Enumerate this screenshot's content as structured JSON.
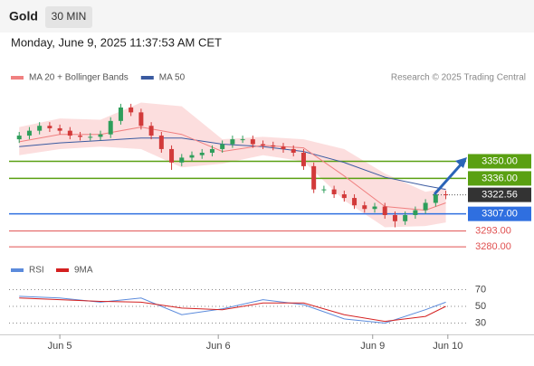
{
  "header": {
    "symbol": "Gold",
    "interval": "30 MIN",
    "timestamp": "Monday, June 9, 2025 11:37:53 AM CET"
  },
  "chart_data": [
    {
      "type": "candlestick",
      "legend": [
        {
          "name": "MA 20 + Bollinger Bands",
          "color": "#f08080"
        },
        {
          "name": "MA 50",
          "color": "#3a5aa0"
        }
      ],
      "credit": "Research © 2025 Trading Central",
      "ylim": [
        3272,
        3408
      ],
      "xlim": [
        -1,
        44
      ],
      "xticks": [
        {
          "value": 4,
          "label": "Jun 5"
        },
        {
          "value": 19.6,
          "label": "Jun 6"
        },
        {
          "value": 34.8,
          "label": "Jun 9"
        },
        {
          "value": 42.2,
          "label": "Jun 10"
        }
      ],
      "up_color": "#2e9e5b",
      "down_color": "#d23a3a",
      "open": [
        3368,
        3371,
        3375,
        3379,
        3377,
        3375,
        3371,
        3370,
        3370,
        3372,
        3383,
        3394,
        3390,
        3379,
        3371,
        3360,
        3349,
        3353,
        3355,
        3357,
        3360,
        3364,
        3368,
        3368,
        3364,
        3363,
        3362,
        3360,
        3357,
        3346,
        3327,
        3327,
        3323,
        3320,
        3314,
        3311,
        3313,
        3306,
        3301,
        3306,
        3310,
        3316,
        3323
      ],
      "high": [
        3374,
        3378,
        3382,
        3382,
        3380,
        3378,
        3374,
        3373,
        3375,
        3386,
        3397,
        3397,
        3393,
        3382,
        3374,
        3363,
        3356,
        3358,
        3360,
        3363,
        3367,
        3371,
        3371,
        3371,
        3367,
        3366,
        3365,
        3363,
        3360,
        3349,
        3330,
        3330,
        3326,
        3323,
        3317,
        3316,
        3316,
        3309,
        3309,
        3313,
        3319,
        3326,
        3326
      ],
      "low": [
        3365,
        3368,
        3372,
        3374,
        3372,
        3368,
        3367,
        3367,
        3367,
        3369,
        3380,
        3387,
        3376,
        3368,
        3357,
        3343,
        3346,
        3350,
        3352,
        3354,
        3357,
        3361,
        3365,
        3361,
        3360,
        3359,
        3357,
        3354,
        3343,
        3324,
        3324,
        3320,
        3317,
        3311,
        3308,
        3308,
        3303,
        3296,
        3298,
        3303,
        3307,
        3313,
        3319
      ],
      "close": [
        3371,
        3375,
        3379,
        3377,
        3375,
        3371,
        3370,
        3370,
        3372,
        3383,
        3394,
        3390,
        3379,
        3371,
        3360,
        3349,
        3353,
        3355,
        3357,
        3360,
        3364,
        3368,
        3368,
        3364,
        3363,
        3362,
        3360,
        3357,
        3346,
        3327,
        3327,
        3323,
        3320,
        3314,
        3311,
        3313,
        3306,
        3301,
        3306,
        3310,
        3316,
        3323,
        3322.56
      ],
      "indicator_x": [
        0,
        4,
        8,
        12,
        16,
        20,
        24,
        28,
        32,
        36,
        40,
        42
      ],
      "band_upper": [
        3378,
        3385,
        3384,
        3398,
        3395,
        3368,
        3370,
        3368,
        3360,
        3340,
        3325,
        3328
      ],
      "band_lower": [
        3355,
        3360,
        3362,
        3360,
        3345,
        3348,
        3355,
        3350,
        3318,
        3296,
        3297,
        3300
      ],
      "ma20": [
        3366,
        3372,
        3372,
        3378,
        3372,
        3358,
        3363,
        3361,
        3338,
        3313,
        3310,
        3316
      ],
      "ma50": [
        3362,
        3365,
        3367,
        3369,
        3369,
        3364,
        3362,
        3358,
        3349,
        3337,
        3330,
        3327
      ],
      "levels": [
        {
          "value": 3350,
          "label": "3350.00",
          "color": "#5aa012",
          "style": "box"
        },
        {
          "value": 3336,
          "label": "3336.00",
          "color": "#5aa012",
          "style": "box"
        },
        {
          "value": 3322.56,
          "label": "3322.56",
          "color": "#333333",
          "style": "current"
        },
        {
          "value": 3307,
          "label": "3307.00",
          "color": "#2f6fe0",
          "style": "box"
        },
        {
          "value": 3293,
          "label": "3293.00",
          "color": "#e05050",
          "style": "text"
        },
        {
          "value": 3280,
          "label": "3280.00",
          "color": "#e05050",
          "style": "text"
        }
      ]
    },
    {
      "type": "line",
      "ylim": [
        10,
        90
      ],
      "yticks": [
        30,
        50,
        70
      ],
      "x": [
        0,
        4,
        8,
        12,
        16,
        20,
        24,
        28,
        32,
        36,
        40,
        42
      ],
      "series": [
        {
          "name": "RSI",
          "color": "#5b8bdc",
          "values": [
            62,
            60,
            55,
            60,
            40,
            47,
            58,
            52,
            35,
            30,
            46,
            55
          ]
        },
        {
          "name": "9MA",
          "color": "#d42020",
          "values": [
            60,
            58,
            56,
            55,
            48,
            46,
            54,
            54,
            40,
            32,
            38,
            50
          ]
        }
      ]
    }
  ]
}
